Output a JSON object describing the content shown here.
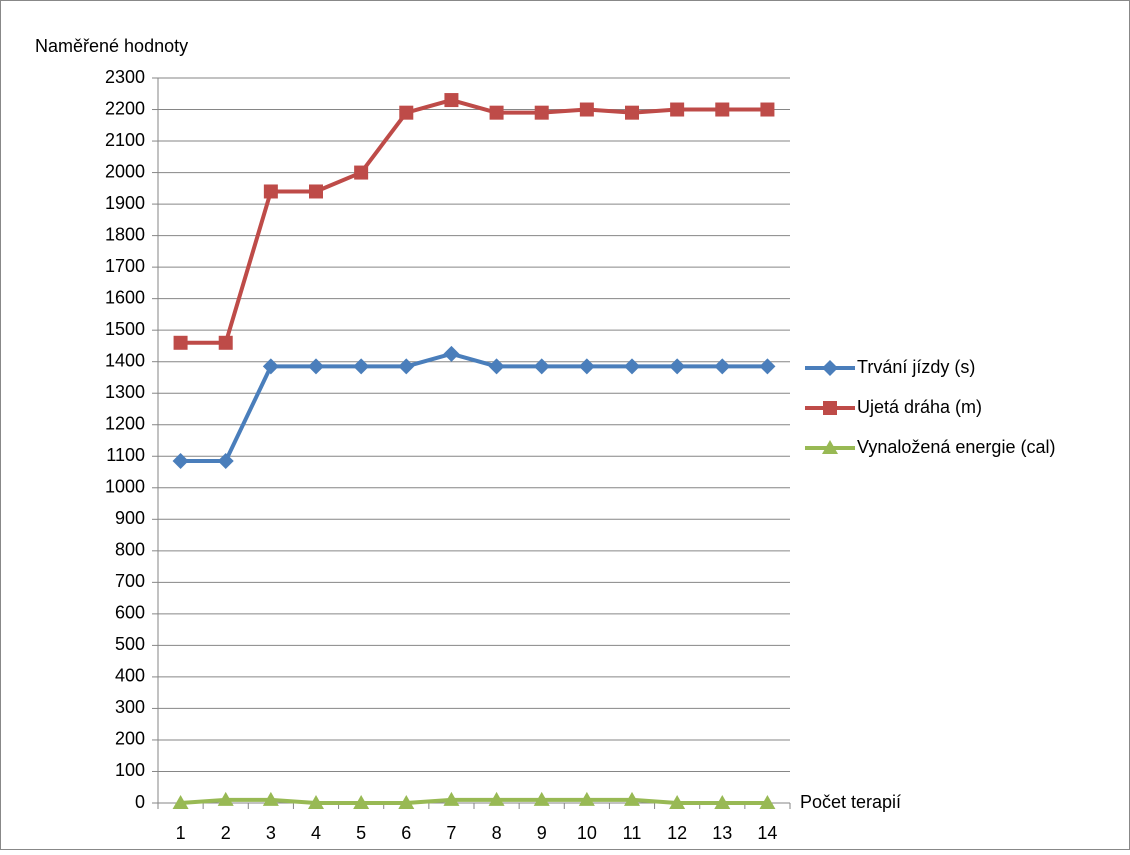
{
  "chart_data": {
    "type": "line",
    "y_axis_label": "Naměřené hodnoty",
    "x_axis_label": "Počet terapií",
    "categories": [
      "1",
      "2",
      "3",
      "4",
      "5",
      "6",
      "7",
      "8",
      "9",
      "10",
      "11",
      "12",
      "13",
      "14"
    ],
    "series": [
      {
        "name": "Trvání jízdy (s)",
        "color": "#4a7ebb",
        "marker": "diamond",
        "values": [
          1085,
          1085,
          1385,
          1385,
          1385,
          1385,
          1425,
          1385,
          1385,
          1385,
          1385,
          1385,
          1385,
          1385
        ]
      },
      {
        "name": "Ujetá dráha (m)",
        "color": "#be4b48",
        "marker": "square",
        "values": [
          1460,
          1460,
          1940,
          1940,
          2000,
          2190,
          2230,
          2190,
          2190,
          2200,
          2190,
          2200,
          2200,
          2200
        ]
      },
      {
        "name": "Vynaložená energie (cal)",
        "color": "#98b954",
        "marker": "triangle",
        "values": [
          0,
          10,
          10,
          0,
          0,
          0,
          10,
          10,
          10,
          10,
          10,
          0,
          0,
          0
        ]
      }
    ],
    "ylim": [
      0,
      2300
    ],
    "yticks": [
      0,
      100,
      200,
      300,
      400,
      500,
      600,
      700,
      800,
      900,
      1000,
      1100,
      1200,
      1300,
      1400,
      1500,
      1600,
      1700,
      1800,
      1900,
      2000,
      2100,
      2200,
      2300
    ],
    "grid": true,
    "legend": "right"
  }
}
